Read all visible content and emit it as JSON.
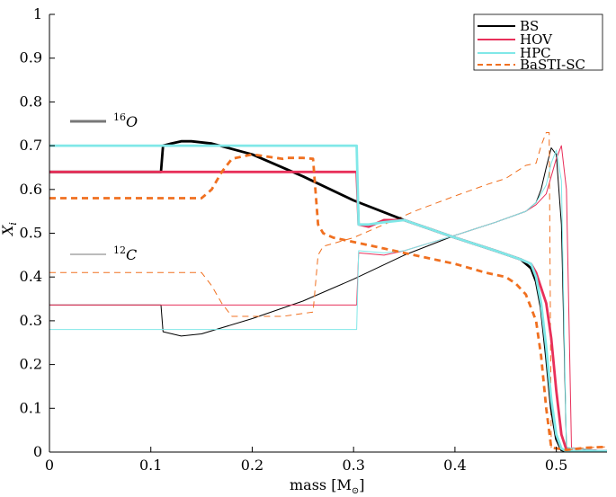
{
  "chart_data": {
    "type": "line",
    "title": "",
    "xlabel": "mass [M",
    "xlabel_sub": "⊙",
    "xlabel_end": "]",
    "ylabel": "X",
    "ylabel_sub": "i",
    "xlim": [
      0,
      0.55
    ],
    "ylim": [
      0,
      1
    ],
    "xticks": [
      0,
      0.1,
      0.2,
      0.3,
      0.4,
      0.5
    ],
    "xtick_labels": [
      "0",
      "0.1",
      "0.2",
      "0.3",
      "0.4",
      "0.5"
    ],
    "yticks": [
      0,
      0.1,
      0.2,
      0.3,
      0.4,
      0.5,
      0.6,
      0.7,
      0.8,
      0.9,
      1
    ],
    "ytick_labels": [
      "0",
      "0.1",
      "0.2",
      "0.3",
      "0.4",
      "0.5",
      "0.6",
      "0.7",
      "0.8",
      "0.9",
      "1"
    ],
    "grid": false,
    "legend_position": "top-right",
    "legend": [
      {
        "name": "BS",
        "color": "#000000",
        "dash": ""
      },
      {
        "name": "HOV",
        "color": "#e8305a",
        "dash": ""
      },
      {
        "name": "HPC",
        "color": "#80e8e8",
        "dash": ""
      },
      {
        "name": "BaSTI-SC",
        "color": "#f07020",
        "dash": "6,4"
      }
    ],
    "annotations": [
      {
        "text": "16",
        "text2": "O",
        "line_width": "thick"
      },
      {
        "text": "12",
        "text2": "C",
        "line_width": "thin"
      }
    ],
    "series": [
      {
        "name": "BS",
        "element": "O",
        "color": "#000000",
        "width": 2.8,
        "dash": "",
        "x": [
          0,
          0.11,
          0.112,
          0.12,
          0.13,
          0.14,
          0.16,
          0.2,
          0.25,
          0.3,
          0.35,
          0.4,
          0.44,
          0.465,
          0.475,
          0.48,
          0.485,
          0.49,
          0.495,
          0.5,
          0.505,
          0.51,
          0.55
        ],
        "y": [
          0.64,
          0.64,
          0.7,
          0.705,
          0.71,
          0.71,
          0.705,
          0.68,
          0.63,
          0.575,
          0.53,
          0.49,
          0.46,
          0.44,
          0.42,
          0.39,
          0.33,
          0.22,
          0.1,
          0.03,
          0.005,
          0.002,
          0.002
        ]
      },
      {
        "name": "BS",
        "element": "C",
        "color": "#000000",
        "width": 1,
        "dash": "",
        "x": [
          0,
          0.11,
          0.112,
          0.13,
          0.15,
          0.2,
          0.25,
          0.3,
          0.35,
          0.4,
          0.44,
          0.47,
          0.48,
          0.485,
          0.49,
          0.495,
          0.5,
          0.505,
          0.51,
          0.55
        ],
        "y": [
          0.336,
          0.336,
          0.275,
          0.265,
          0.27,
          0.305,
          0.345,
          0.395,
          0.45,
          0.495,
          0.525,
          0.55,
          0.57,
          0.6,
          0.65,
          0.695,
          0.68,
          0.52,
          0.01,
          0.002
        ]
      },
      {
        "name": "HOV",
        "element": "O",
        "color": "#e8305a",
        "width": 2.8,
        "dash": "",
        "x": [
          0,
          0.303,
          0.305,
          0.315,
          0.33,
          0.35,
          0.4,
          0.44,
          0.465,
          0.475,
          0.48,
          0.49,
          0.495,
          0.5,
          0.505,
          0.51,
          0.515,
          0.55
        ],
        "y": [
          0.64,
          0.64,
          0.52,
          0.515,
          0.53,
          0.53,
          0.49,
          0.46,
          0.44,
          0.43,
          0.41,
          0.34,
          0.26,
          0.14,
          0.04,
          0.005,
          0.002,
          0.002
        ]
      },
      {
        "name": "HOV",
        "element": "C",
        "color": "#e8305a",
        "width": 1,
        "dash": "",
        "x": [
          0,
          0.303,
          0.305,
          0.33,
          0.35,
          0.4,
          0.44,
          0.47,
          0.48,
          0.49,
          0.495,
          0.5,
          0.505,
          0.51,
          0.515,
          0.55
        ],
        "y": [
          0.336,
          0.336,
          0.455,
          0.45,
          0.46,
          0.495,
          0.525,
          0.55,
          0.565,
          0.59,
          0.63,
          0.67,
          0.7,
          0.6,
          0.01,
          0.002
        ]
      },
      {
        "name": "HPC",
        "element": "O",
        "color": "#80e8e8",
        "width": 2.8,
        "dash": "",
        "x": [
          0,
          0.303,
          0.305,
          0.315,
          0.33,
          0.35,
          0.4,
          0.44,
          0.465,
          0.475,
          0.48,
          0.485,
          0.49,
          0.495,
          0.5,
          0.505,
          0.51,
          0.55
        ],
        "y": [
          0.7,
          0.7,
          0.52,
          0.52,
          0.525,
          0.53,
          0.49,
          0.46,
          0.44,
          0.43,
          0.4,
          0.34,
          0.24,
          0.12,
          0.04,
          0.008,
          0.002,
          0.002
        ]
      },
      {
        "name": "HPC",
        "element": "C",
        "color": "#80e8e8",
        "width": 1,
        "dash": "",
        "x": [
          0,
          0.303,
          0.305,
          0.33,
          0.35,
          0.4,
          0.44,
          0.47,
          0.48,
          0.49,
          0.495,
          0.5,
          0.505,
          0.51,
          0.55
        ],
        "y": [
          0.28,
          0.28,
          0.46,
          0.455,
          0.46,
          0.495,
          0.525,
          0.55,
          0.57,
          0.61,
          0.66,
          0.69,
          0.62,
          0.01,
          0.002
        ]
      },
      {
        "name": "BaSTI-SC",
        "element": "O",
        "color": "#f07020",
        "width": 2.8,
        "dash": "7,5",
        "x": [
          0,
          0.15,
          0.16,
          0.17,
          0.18,
          0.2,
          0.23,
          0.235,
          0.25,
          0.26,
          0.265,
          0.27,
          0.28,
          0.3,
          0.33,
          0.36,
          0.4,
          0.43,
          0.45,
          0.46,
          0.47,
          0.48,
          0.485,
          0.49,
          0.495,
          0.51,
          0.53,
          0.55
        ],
        "y": [
          0.58,
          0.58,
          0.6,
          0.64,
          0.67,
          0.68,
          0.67,
          0.672,
          0.672,
          0.67,
          0.52,
          0.5,
          0.49,
          0.48,
          0.465,
          0.45,
          0.43,
          0.41,
          0.4,
          0.385,
          0.36,
          0.3,
          0.22,
          0.1,
          0.01,
          0.005,
          0.01,
          0.012
        ]
      },
      {
        "name": "BaSTI-SC",
        "element": "C",
        "color": "#f07020",
        "width": 1,
        "dash": "7,5",
        "x": [
          0,
          0.15,
          0.16,
          0.17,
          0.18,
          0.2,
          0.23,
          0.26,
          0.265,
          0.27,
          0.3,
          0.33,
          0.36,
          0.4,
          0.43,
          0.45,
          0.47,
          0.48,
          0.485,
          0.49,
          0.493,
          0.495,
          0.51,
          0.53,
          0.55
        ],
        "y": [
          0.41,
          0.41,
          0.38,
          0.34,
          0.31,
          0.31,
          0.31,
          0.32,
          0.45,
          0.47,
          0.49,
          0.52,
          0.55,
          0.585,
          0.61,
          0.625,
          0.655,
          0.66,
          0.7,
          0.73,
          0.73,
          0.01,
          0.005,
          0.01,
          0.012
        ]
      }
    ]
  }
}
